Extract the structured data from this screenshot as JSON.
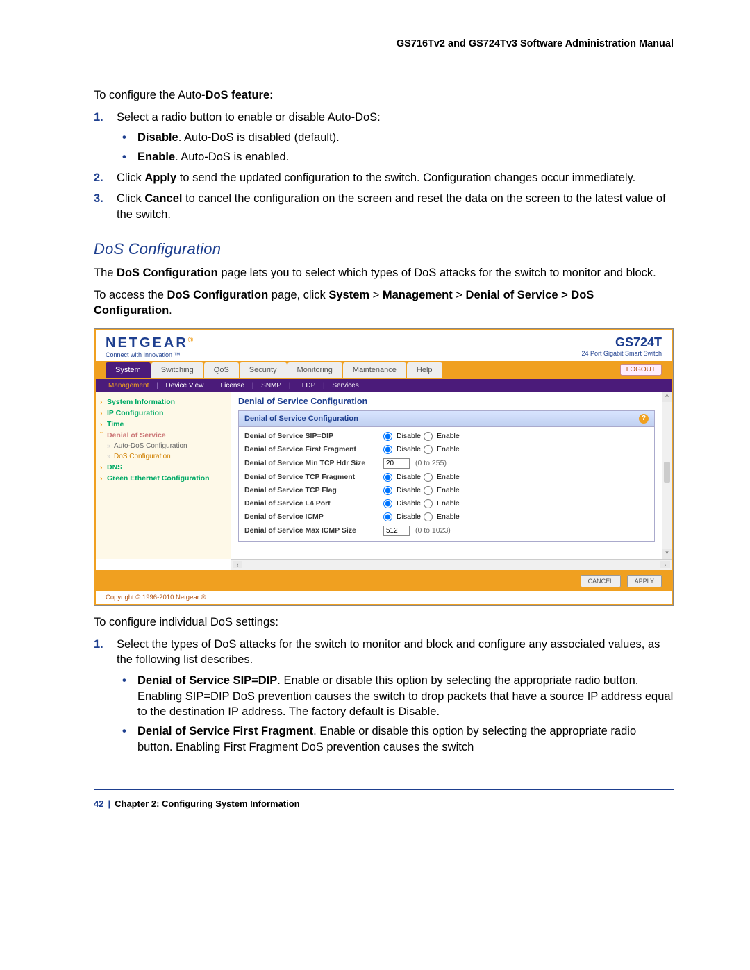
{
  "doc": {
    "title": "GS716Tv2 and GS724Tv3 Software Administration Manual",
    "footer_page": "42",
    "footer_chapter": "Chapter 2:  Configuring System Information"
  },
  "pre_section": {
    "intro": "To configure the Auto-",
    "intro_bold": "DoS feature:",
    "step1_prefix": "Select a radio button to enable or disable Auto-DoS:",
    "step1_b1_bold": "Disable",
    "step1_b1_rest": ". Auto-DoS is disabled (default).",
    "step1_b2_bold": "Enable",
    "step1_b2_rest": ". Auto-DoS is enabled.",
    "step2_a": "Click ",
    "step2_bold": "Apply",
    "step2_b": " to send the updated configuration to the switch. Configuration changes occur immediately.",
    "step3_a": "Click ",
    "step3_bold": "Cancel",
    "step3_b": " to cancel the configuration on the screen and reset the data on the screen to the latest value of the switch."
  },
  "section": {
    "heading": "DoS Configuration",
    "p1_a": "The ",
    "p1_bold": "DoS Configuration",
    "p1_b": " page lets you to select which types of DoS attacks for the switch to monitor and block.",
    "p2_a": "To access the ",
    "p2_bold1": "DoS Configuration",
    "p2_b": " page, click ",
    "p2_bold2": "System",
    "p2_gt1": " > ",
    "p2_bold3": "Management",
    "p2_gt2": " > ",
    "p2_bold4": "Denial of Service > DoS Configuration",
    "p2_end": "."
  },
  "screenshot": {
    "brand": "NETGEAR",
    "brand_sub": "Connect with Innovation ™",
    "product": "GS724T",
    "product_sub": "24 Port Gigabit Smart Switch",
    "logout": "LOGOUT",
    "tabs": [
      "System",
      "Switching",
      "QoS",
      "Security",
      "Monitoring",
      "Maintenance",
      "Help"
    ],
    "active_tab": 0,
    "subnav": [
      "Management",
      "Device View",
      "License",
      "SNMP",
      "LLDP",
      "Services"
    ],
    "subnav_active": 0,
    "side": [
      {
        "label": "System Information",
        "type": "item"
      },
      {
        "label": "IP Configuration",
        "type": "item"
      },
      {
        "label": "Time",
        "type": "item"
      },
      {
        "label": "Denial of Service",
        "type": "open"
      },
      {
        "label": "Auto-DoS Configuration",
        "type": "sub"
      },
      {
        "label": "DoS Configuration",
        "type": "sub-sel"
      },
      {
        "label": "DNS",
        "type": "item"
      },
      {
        "label": "Green Ethernet Configuration",
        "type": "item"
      }
    ],
    "main_title": "Denial of Service Configuration",
    "panel_title": "Denial of Service Configuration",
    "rows": [
      {
        "label": "Denial of Service SIP=DIP",
        "type": "radio",
        "disable": "Disable",
        "enable": "Enable",
        "selected": "disable"
      },
      {
        "label": "Denial of Service First Fragment",
        "type": "radio",
        "disable": "Disable",
        "enable": "Enable",
        "selected": "disable"
      },
      {
        "label": "Denial of Service Min TCP Hdr Size",
        "type": "text",
        "value": "20",
        "range": "(0 to 255)"
      },
      {
        "label": "Denial of Service TCP Fragment",
        "type": "radio",
        "disable": "Disable",
        "enable": "Enable",
        "selected": "disable"
      },
      {
        "label": "Denial of Service TCP Flag",
        "type": "radio",
        "disable": "Disable",
        "enable": "Enable",
        "selected": "disable"
      },
      {
        "label": "Denial of Service L4 Port",
        "type": "radio",
        "disable": "Disable",
        "enable": "Enable",
        "selected": "disable"
      },
      {
        "label": "Denial of Service ICMP",
        "type": "radio",
        "disable": "Disable",
        "enable": "Enable",
        "selected": "disable"
      },
      {
        "label": "Denial of Service Max ICMP Size",
        "type": "text",
        "value": "512",
        "range": "(0 to 1023)"
      }
    ],
    "btn_cancel": "CANCEL",
    "btn_apply": "APPLY",
    "copyright": "Copyright © 1996-2010 Netgear ®"
  },
  "post_section": {
    "intro": "To configure individual DoS settings:",
    "step1": "Select the types of DoS attacks for the switch to monitor and block and configure any associated values, as the following list describes.",
    "b1_bold": "Denial of Service SIP=DIP",
    "b1_rest": ". Enable or disable this option by selecting the appropriate radio button. Enabling SIP=DIP DoS prevention causes the switch to drop packets that have a source IP address equal to the destination IP address. The factory default is Disable.",
    "b2_bold": "Denial of Service First Fragment",
    "b2_rest": ". Enable or disable this option by selecting the appropriate radio button. Enabling First Fragment DoS prevention causes the switch"
  },
  "colors": {
    "brand_blue": "#1e3f8f",
    "orange": "#f0a020",
    "purple": "#4b1b7a"
  }
}
